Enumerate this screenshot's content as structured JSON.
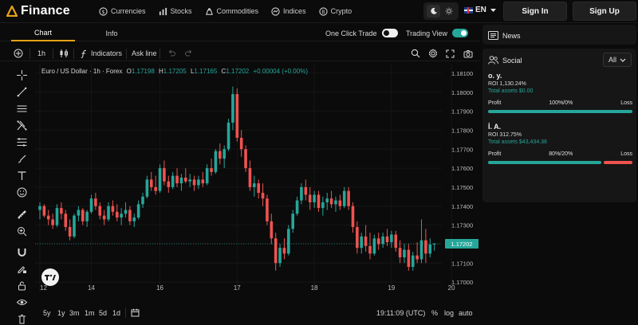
{
  "brand": {
    "logo_text": "Finance"
  },
  "nav": [
    {
      "label": "Currencies",
      "icon": "currency-icon"
    },
    {
      "label": "Stocks",
      "icon": "stocks-icon"
    },
    {
      "label": "Commodities",
      "icon": "commodities-icon"
    },
    {
      "label": "Indices",
      "icon": "indices-icon"
    },
    {
      "label": "Crypto",
      "icon": "crypto-icon"
    }
  ],
  "language": "EN",
  "auth": {
    "sign_in": "Sign In",
    "sign_up": "Sign Up"
  },
  "tabs": {
    "chart": "Chart",
    "info": "Info"
  },
  "toggles": {
    "one_click": "One Click Trade",
    "trading_view": "Trading View",
    "one_click_on": false,
    "trading_view_on": true
  },
  "toolbar": {
    "interval": "1h",
    "indicators": "Indicators",
    "ask_line": "Ask line"
  },
  "legend": {
    "symbol": "Euro / US Dollar · 1h · Forex",
    "o_label": "O",
    "o": "1.17198",
    "h_label": "H",
    "h": "1.17205",
    "l_label": "L",
    "l": "1.17165",
    "c_label": "C",
    "c": "1.17202",
    "change": "+0.00004 (+0.00%)"
  },
  "chart_data": {
    "type": "candlestick",
    "symbol": "Euro / US Dollar · 1h · Forex",
    "x_ticks": [
      "12",
      "14",
      "16",
      "17",
      "18",
      "19",
      "20"
    ],
    "y_ticks": [
      "1.18100",
      "1.18000",
      "1.17900",
      "1.17800",
      "1.17700",
      "1.17600",
      "1.17500",
      "1.17400",
      "1.17300",
      "1.17200",
      "1.17100",
      "1.17000"
    ],
    "ylim": [
      1.1695,
      1.1815
    ],
    "last_price": "1.17202",
    "candles": [
      [
        1.1738,
        1.1742,
        1.1733,
        1.174
      ],
      [
        1.174,
        1.1741,
        1.1734,
        1.1735
      ],
      [
        1.1735,
        1.1738,
        1.173,
        1.1733
      ],
      [
        1.1733,
        1.1736,
        1.1728,
        1.173
      ],
      [
        1.173,
        1.1741,
        1.1729,
        1.1739
      ],
      [
        1.1739,
        1.1742,
        1.1733,
        1.1736
      ],
      [
        1.1736,
        1.1738,
        1.1727,
        1.1729
      ],
      [
        1.1729,
        1.1733,
        1.1722,
        1.1724
      ],
      [
        1.1724,
        1.1736,
        1.1723,
        1.1735
      ],
      [
        1.1735,
        1.174,
        1.1732,
        1.1738
      ],
      [
        1.1738,
        1.1739,
        1.173,
        1.1732
      ],
      [
        1.1732,
        1.1738,
        1.1729,
        1.1737
      ],
      [
        1.1737,
        1.1746,
        1.1736,
        1.1744
      ],
      [
        1.1744,
        1.1747,
        1.1738,
        1.174
      ],
      [
        1.174,
        1.1742,
        1.1733,
        1.1735
      ],
      [
        1.1735,
        1.1738,
        1.173,
        1.1733
      ],
      [
        1.1733,
        1.1742,
        1.1732,
        1.174
      ],
      [
        1.174,
        1.1743,
        1.1735,
        1.1737
      ],
      [
        1.1737,
        1.1741,
        1.1732,
        1.1734
      ],
      [
        1.1734,
        1.1739,
        1.173,
        1.1736
      ],
      [
        1.1736,
        1.1742,
        1.1734,
        1.1738
      ],
      [
        1.1738,
        1.174,
        1.173,
        1.1732
      ],
      [
        1.1732,
        1.1736,
        1.1729,
        1.1734
      ],
      [
        1.1734,
        1.1743,
        1.1733,
        1.1741
      ],
      [
        1.1741,
        1.1747,
        1.1739,
        1.1745
      ],
      [
        1.1745,
        1.1756,
        1.1744,
        1.1754
      ],
      [
        1.1754,
        1.1758,
        1.1748,
        1.175
      ],
      [
        1.175,
        1.1756,
        1.1746,
        1.1748
      ],
      [
        1.1748,
        1.1762,
        1.1747,
        1.176
      ],
      [
        1.176,
        1.1764,
        1.1751,
        1.1753
      ],
      [
        1.1753,
        1.1756,
        1.1747,
        1.175
      ],
      [
        1.175,
        1.1758,
        1.1749,
        1.1756
      ],
      [
        1.1756,
        1.176,
        1.175,
        1.1752
      ],
      [
        1.1752,
        1.1757,
        1.1748,
        1.1755
      ],
      [
        1.1755,
        1.176,
        1.1752,
        1.1753
      ],
      [
        1.1753,
        1.1757,
        1.175,
        1.1754
      ],
      [
        1.1754,
        1.1756,
        1.1748,
        1.1751
      ],
      [
        1.1751,
        1.1756,
        1.1749,
        1.1754
      ],
      [
        1.1754,
        1.1758,
        1.175,
        1.1752
      ],
      [
        1.1752,
        1.1762,
        1.1751,
        1.176
      ],
      [
        1.176,
        1.1765,
        1.1756,
        1.1758
      ],
      [
        1.1758,
        1.177,
        1.1757,
        1.1769
      ],
      [
        1.1769,
        1.1773,
        1.1762,
        1.1765
      ],
      [
        1.1765,
        1.1772,
        1.176,
        1.177
      ],
      [
        1.177,
        1.1786,
        1.1769,
        1.1784
      ],
      [
        1.1784,
        1.1803,
        1.178,
        1.1799
      ],
      [
        1.1799,
        1.1802,
        1.1774,
        1.1776
      ],
      [
        1.1776,
        1.178,
        1.1766,
        1.177
      ],
      [
        1.177,
        1.1772,
        1.1758,
        1.176
      ],
      [
        1.176,
        1.1764,
        1.1748,
        1.175
      ],
      [
        1.175,
        1.1756,
        1.1745,
        1.1752
      ],
      [
        1.1752,
        1.1754,
        1.1744,
        1.1747
      ],
      [
        1.1747,
        1.1752,
        1.174,
        1.1744
      ],
      [
        1.1744,
        1.1746,
        1.173,
        1.1732
      ],
      [
        1.1732,
        1.1736,
        1.172,
        1.1723
      ],
      [
        1.1723,
        1.1726,
        1.1706,
        1.171
      ],
      [
        1.171,
        1.172,
        1.1708,
        1.1718
      ],
      [
        1.1718,
        1.1723,
        1.1712,
        1.1715
      ],
      [
        1.1715,
        1.173,
        1.1714,
        1.1728
      ],
      [
        1.1728,
        1.1738,
        1.1726,
        1.1736
      ],
      [
        1.1736,
        1.1745,
        1.1735,
        1.1743
      ],
      [
        1.1743,
        1.1752,
        1.1741,
        1.175
      ],
      [
        1.175,
        1.1754,
        1.1743,
        1.1746
      ],
      [
        1.1746,
        1.175,
        1.1738,
        1.1742
      ],
      [
        1.1742,
        1.1748,
        1.1739,
        1.1746
      ],
      [
        1.1746,
        1.1748,
        1.1737,
        1.1739
      ],
      [
        1.1739,
        1.1745,
        1.1735,
        1.1742
      ],
      [
        1.1742,
        1.1747,
        1.1738,
        1.1744
      ],
      [
        1.1744,
        1.1748,
        1.1739,
        1.1741
      ],
      [
        1.1741,
        1.1745,
        1.1737,
        1.1743
      ],
      [
        1.1743,
        1.1746,
        1.1738,
        1.174
      ],
      [
        1.174,
        1.175,
        1.1739,
        1.1748
      ],
      [
        1.1748,
        1.175,
        1.1738,
        1.174
      ],
      [
        1.174,
        1.1742,
        1.1726,
        1.1729
      ],
      [
        1.1729,
        1.1732,
        1.1715,
        1.1718
      ],
      [
        1.1718,
        1.1726,
        1.1715,
        1.1724
      ],
      [
        1.1724,
        1.173,
        1.1716,
        1.1719
      ],
      [
        1.1719,
        1.1726,
        1.1712,
        1.1715
      ],
      [
        1.1715,
        1.1725,
        1.1714,
        1.1723
      ],
      [
        1.1723,
        1.1726,
        1.1717,
        1.172
      ],
      [
        1.172,
        1.1726,
        1.1718,
        1.1724
      ],
      [
        1.1724,
        1.1728,
        1.1719,
        1.1721
      ],
      [
        1.1721,
        1.1727,
        1.1718,
        1.1725
      ],
      [
        1.1725,
        1.1727,
        1.1716,
        1.1718
      ],
      [
        1.1718,
        1.1722,
        1.171,
        1.1713
      ],
      [
        1.1713,
        1.172,
        1.171,
        1.1717
      ],
      [
        1.1717,
        1.172,
        1.1706,
        1.1708
      ],
      [
        1.1708,
        1.1716,
        1.1706,
        1.1714
      ],
      [
        1.1714,
        1.1721,
        1.171,
        1.1712
      ],
      [
        1.1712,
        1.1733,
        1.171,
        1.1722
      ],
      [
        1.1722,
        1.1728,
        1.171,
        1.1715
      ],
      [
        1.1715,
        1.1723,
        1.1713,
        1.17198
      ],
      [
        1.17198,
        1.17205,
        1.17165,
        1.17202
      ]
    ]
  },
  "price_label": "1.17202",
  "bottom": {
    "ranges": [
      "5y",
      "1y",
      "3m",
      "1m",
      "5d",
      "1d"
    ],
    "time": "19:11:09 (UTC)",
    "pct": "%",
    "log": "log",
    "auto": "auto"
  },
  "news": {
    "title": "News"
  },
  "social": {
    "title": "Social",
    "filter": "All",
    "traders": [
      {
        "name": "o. y.",
        "roi": "ROI 1,130.24%",
        "assets": "Total assets $0.00",
        "profit_label": "Profit",
        "split": "100%/0%",
        "loss_label": "Loss",
        "profit_frac": 1.0
      },
      {
        "name": "İ. A.",
        "roi": "ROI 312.75%",
        "assets": "Total assets $43,434.38",
        "profit_label": "Profit",
        "split": "80%/20%",
        "loss_label": "Loss",
        "profit_frac": 0.8
      }
    ]
  },
  "colors": {
    "up": "#26a69a",
    "down": "#ef5350",
    "accent": "#e6a317"
  }
}
